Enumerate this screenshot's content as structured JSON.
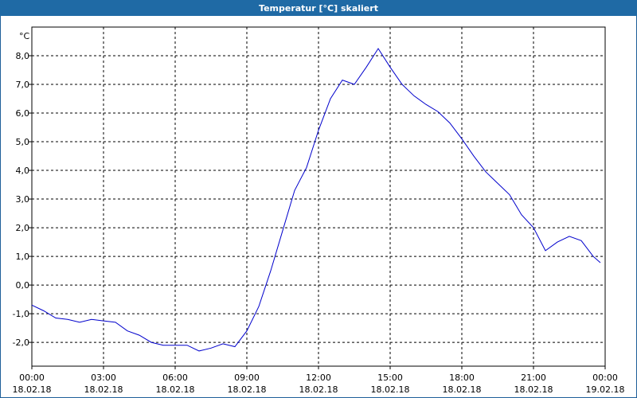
{
  "chart_data": {
    "type": "line",
    "title": "Temperatur [°C] skaliert",
    "y_unit": "°C",
    "x": [
      0,
      0.5,
      1,
      1.5,
      2,
      2.5,
      3,
      3.5,
      4,
      4.5,
      5,
      5.5,
      6,
      6.5,
      7,
      7.5,
      8,
      8.5,
      9,
      9.5,
      10,
      10.5,
      11,
      11.5,
      12,
      12.5,
      13,
      13.5,
      14,
      14.5,
      15,
      15.5,
      16,
      16.5,
      17,
      17.5,
      18,
      18.5,
      19,
      19.5,
      20,
      20.5,
      21,
      21.5,
      22,
      22.5,
      23,
      23.5,
      23.8
    ],
    "series": [
      {
        "name": "Temperatur",
        "color": "#0000cc",
        "values": [
          -0.7,
          -0.9,
          -1.15,
          -1.2,
          -1.3,
          -1.2,
          -1.25,
          -1.3,
          -1.6,
          -1.75,
          -2.0,
          -2.1,
          -2.1,
          -2.1,
          -2.3,
          -2.2,
          -2.05,
          -2.15,
          -1.6,
          -0.75,
          0.5,
          1.9,
          3.3,
          4.1,
          5.4,
          6.5,
          7.15,
          7.0,
          7.6,
          8.25,
          7.6,
          7.0,
          6.6,
          6.3,
          6.05,
          5.65,
          5.1,
          4.5,
          3.95,
          3.55,
          3.15,
          2.45,
          2.0,
          1.2,
          1.5,
          1.7,
          1.55,
          1.0,
          0.78
        ]
      }
    ],
    "xlim": [
      0,
      24
    ],
    "xticks": [
      {
        "value": 0,
        "label": "00:00\n18.02.18"
      },
      {
        "value": 3,
        "label": "03:00\n18.02.18"
      },
      {
        "value": 6,
        "label": "06:00\n18.02.18"
      },
      {
        "value": 9,
        "label": "09:00\n18.02.18"
      },
      {
        "value": 12,
        "label": "12:00\n18.02.18"
      },
      {
        "value": 15,
        "label": "15:00\n18.02.18"
      },
      {
        "value": 18,
        "label": "18:00\n18.02.18"
      },
      {
        "value": 21,
        "label": "21:00\n18.02.18"
      },
      {
        "value": 24,
        "label": "00:00\n19.02.18"
      }
    ],
    "ylim": [
      -2.83,
      9.0
    ],
    "yticks": [
      {
        "value": -2,
        "label": "-2,0"
      },
      {
        "value": -1,
        "label": "-1,0"
      },
      {
        "value": 0,
        "label": "0,0"
      },
      {
        "value": 1,
        "label": "1,0"
      },
      {
        "value": 2,
        "label": "2,0"
      },
      {
        "value": 3,
        "label": "3,0"
      },
      {
        "value": 4,
        "label": "4,0"
      },
      {
        "value": 5,
        "label": "5,0"
      },
      {
        "value": 6,
        "label": "6,0"
      },
      {
        "value": 7,
        "label": "7,0"
      },
      {
        "value": 8,
        "label": "8,0"
      }
    ],
    "grid": true
  }
}
